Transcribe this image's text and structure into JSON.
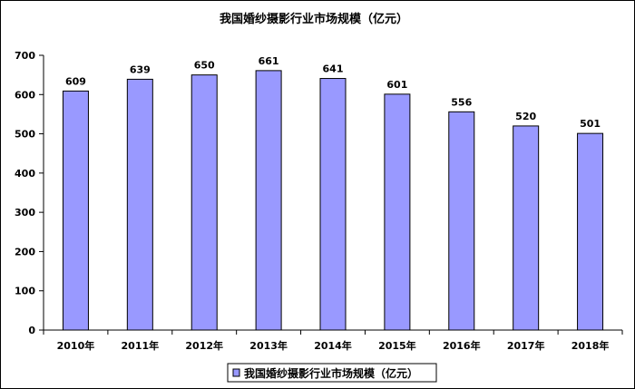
{
  "chart_data": {
    "type": "bar",
    "title": "我国婚纱摄影行业市场规模（亿元）",
    "categories": [
      "2010年",
      "2011年",
      "2012年",
      "2013年",
      "2014年",
      "2015年",
      "2016年",
      "2017年",
      "2018年"
    ],
    "series": [
      {
        "name": "我国婚纱摄影行业市场规模（亿元）",
        "values": [
          609,
          639,
          650,
          661,
          641,
          601,
          556,
          520,
          501
        ],
        "color": "#9999ff"
      }
    ],
    "yticks": [
      "0",
      "100",
      "200",
      "300",
      "400",
      "500",
      "600",
      "700"
    ],
    "ylim": [
      0,
      700
    ],
    "xlabel": "",
    "ylabel": "",
    "grid": false,
    "legend_position": "bottom",
    "data_labels": [
      "609",
      "639",
      "650",
      "661",
      "641",
      "601",
      "556",
      "520",
      "501"
    ]
  }
}
